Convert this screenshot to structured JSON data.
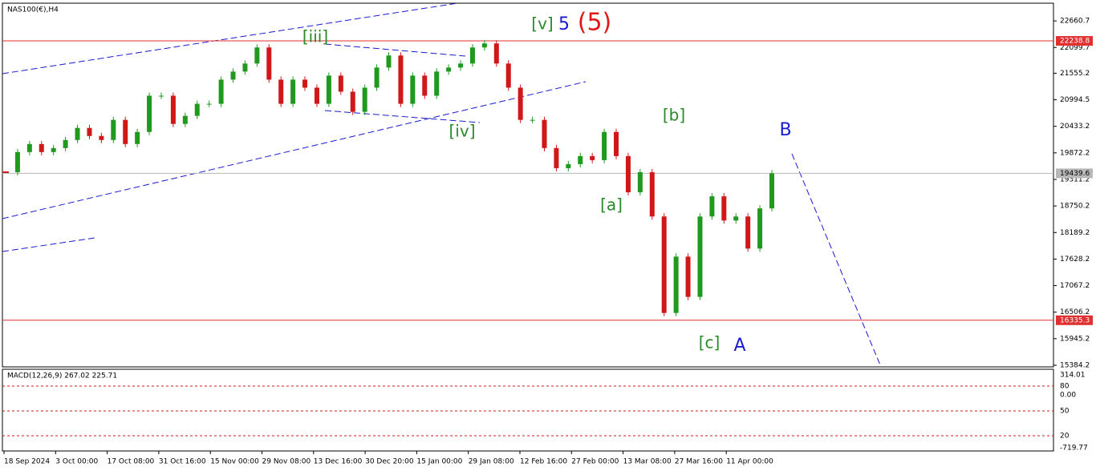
{
  "header": {
    "symbol": "NAS100(€),H4"
  },
  "chart_data": {
    "type": "candlestick",
    "closes": [
      19464,
      19889,
      20059,
      19889,
      19974,
      20144,
      20399,
      20229,
      20144,
      20569,
      20059,
      20314,
      21080,
      21080,
      20484,
      20654,
      20909,
      20909,
      21420,
      21590,
      21760,
      22100,
      21420,
      20909,
      21420,
      21250,
      20909,
      21505,
      21165,
      20739,
      21250,
      21675,
      21930,
      20909,
      21505,
      21080,
      21590,
      21675,
      21760,
      22100,
      22185,
      21760,
      21250,
      20569,
      20569,
      19974,
      19549,
      19634,
      19804,
      19719,
      20314,
      19804,
      19039,
      19464,
      18528,
      16489,
      17680,
      16829,
      18528,
      18954,
      18443,
      18528,
      17850,
      18699,
      19439.6
    ],
    "ylim": [
      15350,
      23035
    ],
    "yticks": [
      22660.7,
      22099.7,
      21555.2,
      20994.5,
      20433.2,
      19872.2,
      19311.2,
      18750.2,
      18189.2,
      17628.2,
      17067.2,
      16506.2,
      15945.2,
      15384.2
    ],
    "levels": [
      {
        "value": 22238.8,
        "color": "#e03030"
      },
      {
        "value": 16335.3,
        "color": "#e03030"
      },
      {
        "value": 19439.6,
        "color": "#b8b8b8"
      }
    ],
    "up_color": "#1f9a1f",
    "down_color": "#d01818",
    "annotations": [
      {
        "text": "[iii]",
        "color": "#2a8a2a"
      },
      {
        "text": "[iv]",
        "color": "#2a8a2a"
      },
      {
        "text": "[v]",
        "color": "#2a8a2a"
      },
      {
        "text": "5",
        "color": "#1a1ad0"
      },
      {
        "text": "(5)",
        "color": "#e01818"
      },
      {
        "text": "[a]",
        "color": "#2a8a2a"
      },
      {
        "text": "[b]",
        "color": "#2a8a2a"
      },
      {
        "text": "[c]",
        "color": "#2a8a2a"
      },
      {
        "text": "A",
        "color": "#1a1ad0"
      },
      {
        "text": "B",
        "color": "#1a1ad0"
      }
    ],
    "dates": [
      "18 Sep 2024",
      "3 Oct 00:00",
      "17 Oct 08:00",
      "31 Oct 16:00",
      "15 Nov 00:00",
      "29 Nov 08:00",
      "13 Dec 16:00",
      "30 Dec 20:00",
      "15 Jan 00:00",
      "29 Jan 08:00",
      "12 Feb 16:00",
      "27 Feb 00:00",
      "13 Mar 08:00",
      "27 Mar 16:00",
      "11 Apr 00:00"
    ]
  },
  "macd": {
    "label": "MACD(12,26,9) 267.02 225.71",
    "axis_labels": [
      "314.01",
      "80",
      "0.00",
      "50",
      "20",
      "-719.77"
    ]
  }
}
